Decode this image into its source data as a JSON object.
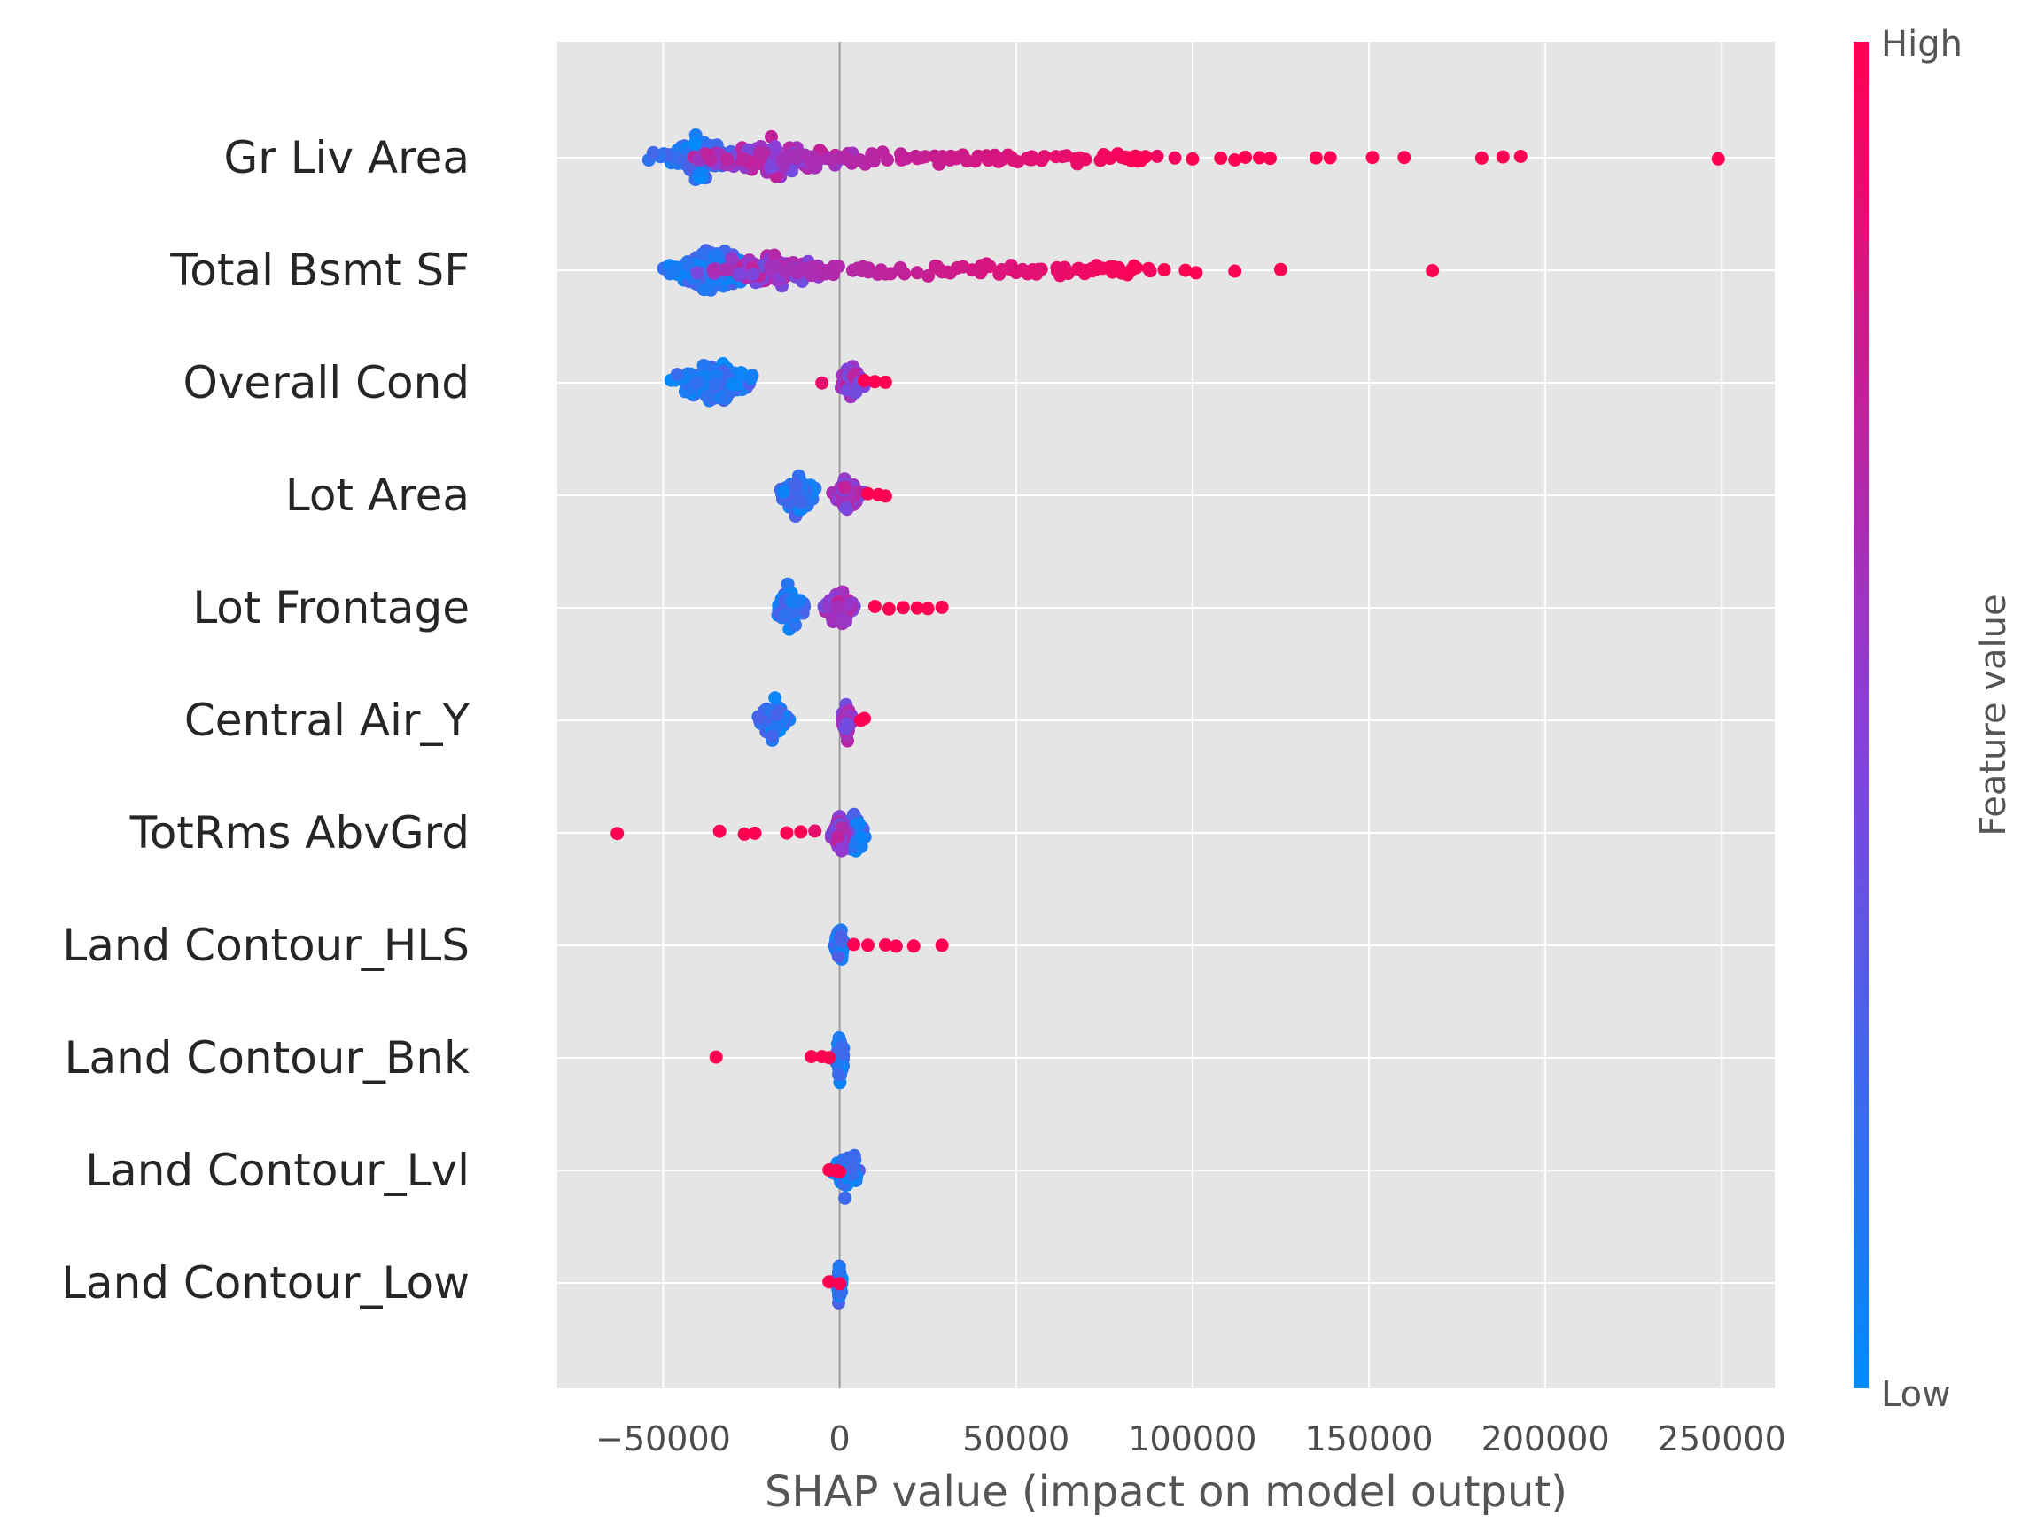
{
  "chart_data": {
    "type": "scatter",
    "subtype": "shap-beeswarm-summary",
    "xlabel": "SHAP value (impact on model output)",
    "xlim": [
      -80000,
      265000
    ],
    "xticks": [
      -50000,
      0,
      50000,
      100000,
      150000,
      200000,
      250000
    ],
    "xtick_labels": [
      "−50000",
      "0",
      "50000",
      "100000",
      "150000",
      "200000",
      "250000"
    ],
    "grid": true,
    "background": "#e5e5e5",
    "colorbar": {
      "title": "Feature value",
      "high_label": "High",
      "low_label": "Low",
      "low_color": "#008bfb",
      "mid_color": "#8a3ed8",
      "high_color": "#ff0052"
    },
    "features": [
      {
        "name": "Gr Liv Area",
        "min": -58000,
        "max": 249000,
        "low_cluster": [
          -40000,
          9000
        ],
        "mid_cluster": [
          -18000,
          22000
        ],
        "high_points": [
          [
            90000,
            0.95
          ],
          [
            95000,
            0.95
          ],
          [
            100000,
            1
          ],
          [
            108000,
            1
          ],
          [
            112000,
            1
          ],
          [
            115000,
            1
          ],
          [
            119000,
            1
          ],
          [
            122000,
            1
          ],
          [
            135000,
            1
          ],
          [
            139000,
            1
          ],
          [
            151000,
            1
          ],
          [
            160000,
            1
          ],
          [
            182000,
            1
          ],
          [
            188000,
            1
          ],
          [
            193000,
            1
          ],
          [
            249000,
            1
          ]
        ]
      },
      {
        "name": "Total Bsmt SF",
        "min": -56000,
        "max": 168000,
        "low_cluster": [
          -36000,
          11000
        ],
        "mid_cluster": [
          -20000,
          16000
        ],
        "high_points": [
          [
            88000,
            0.95
          ],
          [
            92000,
            1
          ],
          [
            98000,
            1
          ],
          [
            101000,
            1
          ],
          [
            112000,
            1
          ],
          [
            125000,
            1
          ],
          [
            168000,
            1
          ]
        ]
      },
      {
        "name": "Overall Cond",
        "min": -52000,
        "max": 13000,
        "low_cluster": [
          -35000,
          10000
        ],
        "mid_cluster": [
          3000,
          3000
        ],
        "high_points": [
          [
            -5000,
            0.9
          ],
          [
            7000,
            1
          ],
          [
            10000,
            1
          ],
          [
            13000,
            1
          ]
        ]
      },
      {
        "name": "Lot Area",
        "min": -21000,
        "max": 13000,
        "low_cluster": [
          -12000,
          5000
        ],
        "mid_cluster": [
          2000,
          3500
        ],
        "high_points": [
          [
            8000,
            1
          ],
          [
            11000,
            1
          ],
          [
            13000,
            1
          ]
        ]
      },
      {
        "name": "Lot Frontage",
        "min": -18000,
        "max": 29000,
        "low_cluster": [
          -14000,
          4000
        ],
        "mid_cluster": [
          0,
          4000
        ],
        "high_points": [
          [
            10000,
            1
          ],
          [
            14000,
            1
          ],
          [
            18000,
            1
          ],
          [
            22000,
            1
          ],
          [
            25000,
            1
          ],
          [
            29000,
            1
          ]
        ]
      },
      {
        "name": "Central Air_Y",
        "min": -26000,
        "max": 7000,
        "low_cluster": [
          -19000,
          3500
        ],
        "mid_cluster": [
          2000,
          1200
        ],
        "high_points": [
          [
            6000,
            1
          ],
          [
            7000,
            1
          ]
        ]
      },
      {
        "name": "TotRms AbvGrd",
        "min": -63000,
        "max": 11000,
        "low_cluster": [
          4000,
          3000
        ],
        "mid_cluster": [
          0,
          2000
        ],
        "high_points": [
          [
            -63000,
            1
          ],
          [
            -34000,
            1
          ],
          [
            -27000,
            1
          ],
          [
            -24000,
            1
          ],
          [
            -15000,
            1
          ],
          [
            -11000,
            1
          ],
          [
            -7000,
            0.9
          ]
        ]
      },
      {
        "name": "Land Contour_HLS",
        "min": -4000,
        "max": 29000,
        "low_cluster": [
          0,
          1200
        ],
        "mid_cluster": [
          0,
          0
        ],
        "high_points": [
          [
            4000,
            1
          ],
          [
            8000,
            1
          ],
          [
            13000,
            1
          ],
          [
            16000,
            1
          ],
          [
            21000,
            1
          ],
          [
            29000,
            1
          ]
        ]
      },
      {
        "name": "Land Contour_Bnk",
        "min": -35000,
        "max": 3000,
        "low_cluster": [
          0,
          1000
        ],
        "mid_cluster": [
          0,
          0
        ],
        "high_points": [
          [
            -35000,
            1
          ],
          [
            -8000,
            1
          ],
          [
            -5000,
            1
          ],
          [
            -3000,
            1
          ]
        ]
      },
      {
        "name": "Land Contour_Lvl",
        "min": -5000,
        "max": 10000,
        "low_cluster": [
          2000,
          3500
        ],
        "mid_cluster": [
          0,
          0
        ],
        "high_points": [
          [
            -3000,
            1
          ],
          [
            -1000,
            1
          ],
          [
            0,
            1
          ]
        ]
      },
      {
        "name": "Land Contour_Low",
        "min": -4000,
        "max": 2000,
        "low_cluster": [
          0,
          600
        ],
        "mid_cluster": [
          0,
          0
        ],
        "high_points": [
          [
            -3000,
            1
          ],
          [
            0,
            1
          ]
        ]
      }
    ]
  }
}
